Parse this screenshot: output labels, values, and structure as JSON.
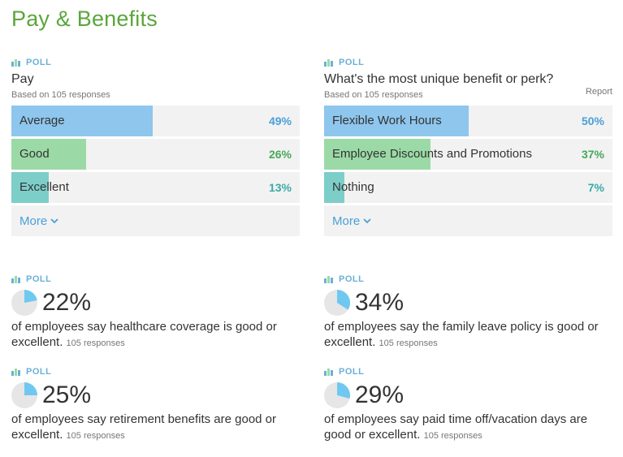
{
  "title": "Pay & Benefits",
  "polls": [
    {
      "tag": "POLL",
      "question": "Pay",
      "meta": "Based on 105 responses",
      "report": "",
      "options": [
        {
          "label": "Average",
          "pct_text": "49%",
          "value": 49,
          "color": "#8ec6ee",
          "pct_color": "#4a9fd8"
        },
        {
          "label": "Good",
          "pct_text": "26%",
          "value": 26,
          "color": "#9bdaa6",
          "pct_color": "#45a95a"
        },
        {
          "label": "Excellent",
          "pct_text": "13%",
          "value": 13,
          "color": "#7dcec9",
          "pct_color": "#3aaaa6"
        }
      ],
      "more": "More"
    },
    {
      "tag": "POLL",
      "question": "What's the most unique benefit or perk?",
      "meta": "Based on 105 responses",
      "report": "Report",
      "options": [
        {
          "label": "Flexible Work Hours",
          "pct_text": "50%",
          "value": 50,
          "color": "#8ec6ee",
          "pct_color": "#4a9fd8"
        },
        {
          "label": "Employee Discounts and Promotions",
          "pct_text": "37%",
          "value": 37,
          "color": "#9bdaa6",
          "pct_color": "#45a95a"
        },
        {
          "label": "Nothing",
          "pct_text": "7%",
          "value": 7,
          "color": "#7dcec9",
          "pct_color": "#3aaaa6"
        }
      ],
      "more": "More"
    }
  ],
  "stats": [
    {
      "tag": "POLL",
      "pct_text": "22%",
      "value": 22,
      "text": "of employees say healthcare coverage is good or excellent.",
      "responses": "105 responses"
    },
    {
      "tag": "POLL",
      "pct_text": "34%",
      "value": 34,
      "text": "of employees say the family leave policy is good or excellent.",
      "responses": "105 responses"
    },
    {
      "tag": "POLL",
      "pct_text": "25%",
      "value": 25,
      "text": "of employees say retirement benefits are good or excellent.",
      "responses": "105 responses"
    },
    {
      "tag": "POLL",
      "pct_text": "29%",
      "value": 29,
      "text": "of employees say paid time off/vacation days are good or excellent.",
      "responses": "105 responses"
    }
  ],
  "colors": {
    "title": "#5aa63c",
    "pie_fill": "#6fc8f0",
    "pie_bg": "#e6e6e6",
    "link": "#4a9fd8"
  }
}
